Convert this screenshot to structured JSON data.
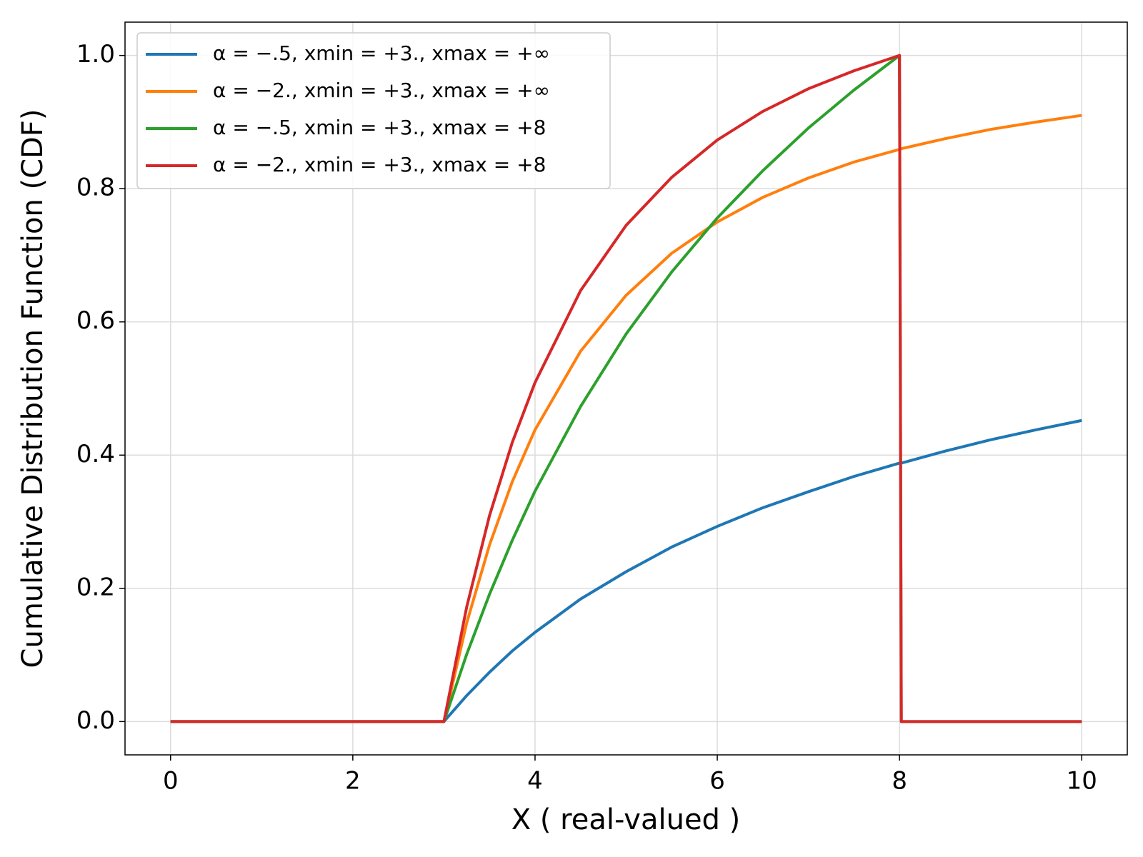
{
  "chart_data": {
    "type": "line",
    "xlabel": "X ( real-valued )",
    "ylabel": "Cumulative Distribution Function (CDF)",
    "x": [
      0,
      3,
      3.25,
      3.5,
      3.75,
      4,
      4.5,
      5,
      5.5,
      6,
      6.5,
      7,
      7.5,
      8,
      8.02,
      8.5,
      9,
      9.5,
      10
    ],
    "series": [
      {
        "name": "α = −.5, xmin = +3., xmax = +∞",
        "color": "#1f77b4",
        "values": [
          0,
          0,
          0.039,
          0.074,
          0.106,
          0.134,
          0.184,
          0.225,
          0.262,
          0.293,
          0.321,
          0.345,
          0.368,
          0.388,
          0.388,
          0.406,
          0.423,
          0.438,
          0.452
        ]
      },
      {
        "name": "α = −2., xmin = +3., xmax = +∞",
        "color": "#ff7f0e",
        "values": [
          0,
          0,
          0.148,
          0.265,
          0.36,
          0.438,
          0.556,
          0.64,
          0.703,
          0.75,
          0.787,
          0.816,
          0.84,
          0.859,
          0.86,
          0.875,
          0.889,
          0.9,
          0.91
        ]
      },
      {
        "name": "α = −.5, xmin = +3., xmax = +8",
        "color": "#2ca02c",
        "values": [
          0,
          0,
          0.101,
          0.191,
          0.272,
          0.346,
          0.473,
          0.582,
          0.675,
          0.756,
          0.827,
          0.891,
          0.948,
          1,
          0,
          0,
          0,
          0,
          0
        ]
      },
      {
        "name": "α = −2., xmin = +3., xmax = +8",
        "color": "#d62728",
        "values": [
          0,
          0,
          0.172,
          0.309,
          0.419,
          0.509,
          0.647,
          0.745,
          0.817,
          0.873,
          0.916,
          0.95,
          0.977,
          1,
          0,
          0,
          0,
          0,
          0
        ]
      }
    ],
    "xlim": [
      -0.5,
      10.5
    ],
    "xticks": [
      0,
      2,
      4,
      6,
      8,
      10
    ],
    "ylim": [
      -0.05,
      1.05
    ],
    "yticks": [
      {
        "value": 0,
        "label": "0.0"
      },
      0.2,
      0.4,
      0.6,
      0.8,
      {
        "value": 1,
        "label": "1.0"
      }
    ],
    "grid": true,
    "legend": "upper-left"
  }
}
